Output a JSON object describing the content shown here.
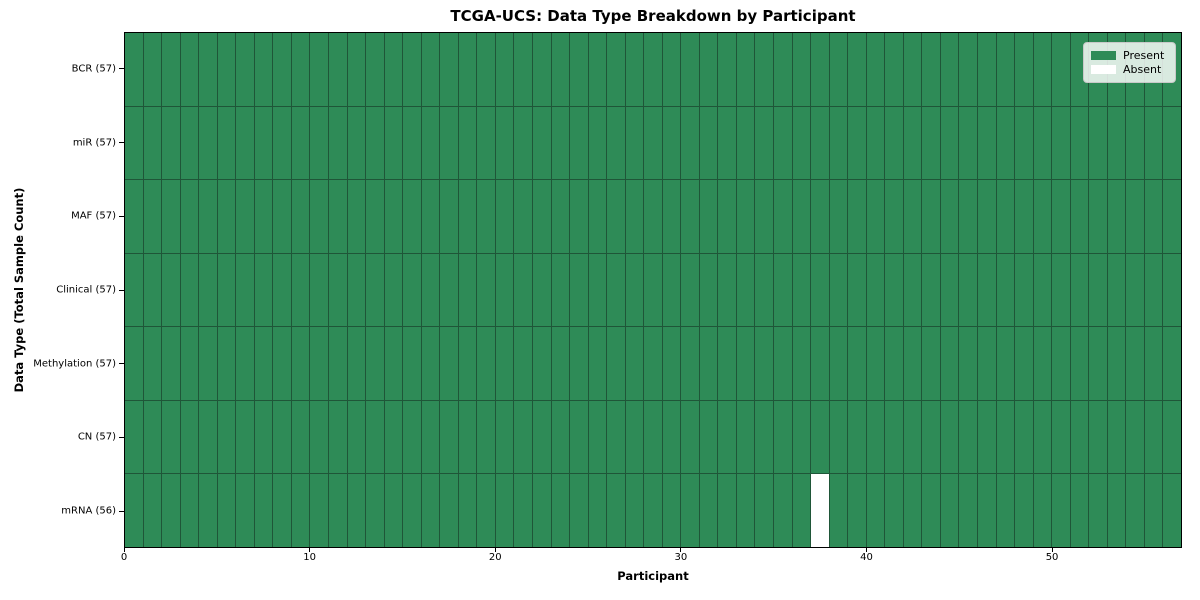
{
  "chart_data": {
    "type": "heatmap",
    "title": "TCGA-UCS: Data Type Breakdown by Participant",
    "xlabel": "Participant",
    "ylabel": "Data Type (Total Sample Count)",
    "n_participants": 57,
    "xlim": [
      0,
      57
    ],
    "x_ticks": [
      0,
      10,
      20,
      30,
      40,
      50
    ],
    "rows": [
      {
        "label": "BCR (57)",
        "data_type": "BCR",
        "total_samples": 57,
        "absent_participants": []
      },
      {
        "label": "miR (57)",
        "data_type": "miR",
        "total_samples": 57,
        "absent_participants": []
      },
      {
        "label": "MAF (57)",
        "data_type": "MAF",
        "total_samples": 57,
        "absent_participants": []
      },
      {
        "label": "Clinical (57)",
        "data_type": "Clinical",
        "total_samples": 57,
        "absent_participants": []
      },
      {
        "label": "Methylation (57)",
        "data_type": "Methylation",
        "total_samples": 57,
        "absent_participants": []
      },
      {
        "label": "CN (57)",
        "data_type": "CN",
        "total_samples": 57,
        "absent_participants": []
      },
      {
        "label": "mRNA (56)",
        "data_type": "mRNA",
        "total_samples": 56,
        "absent_participants": [
          37
        ]
      }
    ],
    "legend": {
      "position": "upper right",
      "items": [
        {
          "label": "Present",
          "color": "#2e8b57"
        },
        {
          "label": "Absent",
          "color": "#ffffff"
        }
      ]
    },
    "colors": {
      "present": "#2e8b57",
      "absent": "#ffffff",
      "cell_edge": "#1f5638",
      "spine": "#000000"
    },
    "grid": "cell-borders",
    "legend_on": true
  }
}
